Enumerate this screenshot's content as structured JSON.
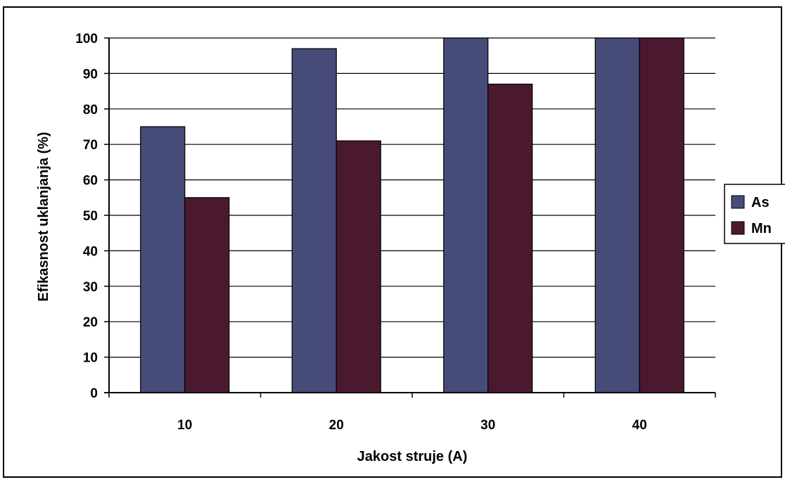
{
  "chart_data": {
    "type": "bar",
    "categories": [
      "10",
      "20",
      "30",
      "40"
    ],
    "series": [
      {
        "name": "As",
        "values": [
          75,
          97,
          100,
          100
        ],
        "color": "#474b78"
      },
      {
        "name": "Mn",
        "values": [
          55,
          71,
          87,
          100
        ],
        "color": "#4a1930"
      }
    ],
    "xlabel": "Jakost struje (A)",
    "ylabel": "Efikasnost uklanjanja (%)",
    "ylim": [
      0,
      100
    ],
    "yticks": [
      "0",
      "10",
      "20",
      "30",
      "40",
      "50",
      "60",
      "70",
      "80",
      "90",
      "100"
    ],
    "grid": true,
    "legend_position": "right"
  }
}
